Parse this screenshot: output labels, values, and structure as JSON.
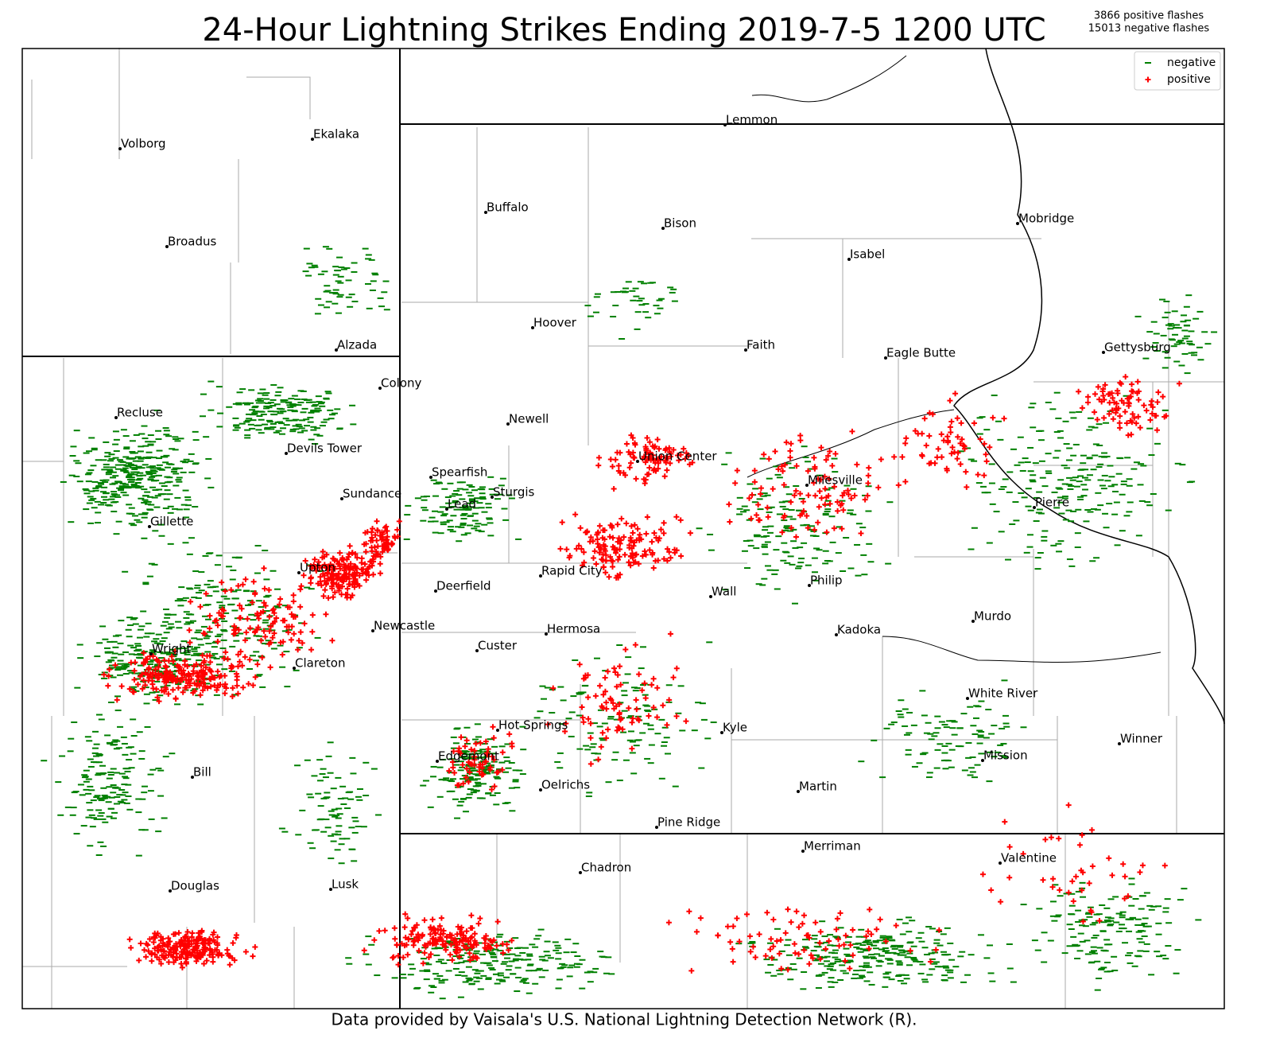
{
  "title": "24-Hour Lightning Strikes Ending 2019-7-5 1200 UTC",
  "flash_counts": [
    "3866 positive flashes",
    "15013 negative flashes"
  ],
  "legend": [
    {
      "label": "negative",
      "color": "#008000"
    },
    {
      "label": "positive",
      "color": "#ff0000"
    }
  ],
  "cities": [
    "Volborg",
    "Ekalaka",
    "Broadus",
    "Alzada",
    "Colony",
    "Recluse",
    "Devils Tower",
    "Sundance",
    "Gillette",
    "Upton",
    "Newcastle",
    "Wright",
    "Clareton",
    "Bill",
    "Douglas",
    "Lusk",
    "Lemmon",
    "Buffalo",
    "Bison",
    "Hoover",
    "Faith",
    "Newell",
    "Spearfish",
    "Sturgis",
    "Lead",
    "Union Center",
    "Rapid City",
    "Deerfield",
    "Wall",
    "Hermosa",
    "Custer",
    "Hot Springs",
    "Edgemont",
    "Oelrichs",
    "Kyle",
    "Pine Ridge",
    "Martin",
    "Merriman",
    "Chadron",
    "Isabel",
    "Eagle Butte",
    "Mobridge",
    "Gettysburg",
    "Milesville",
    "Pierre",
    "Philip",
    "Kadoka",
    "Murdo",
    "White River",
    "Mission",
    "Winner",
    "Valentine"
  ],
  "footer": "Data provided by Vaisala's U.S. National Lightning Detection Network (R)."
}
